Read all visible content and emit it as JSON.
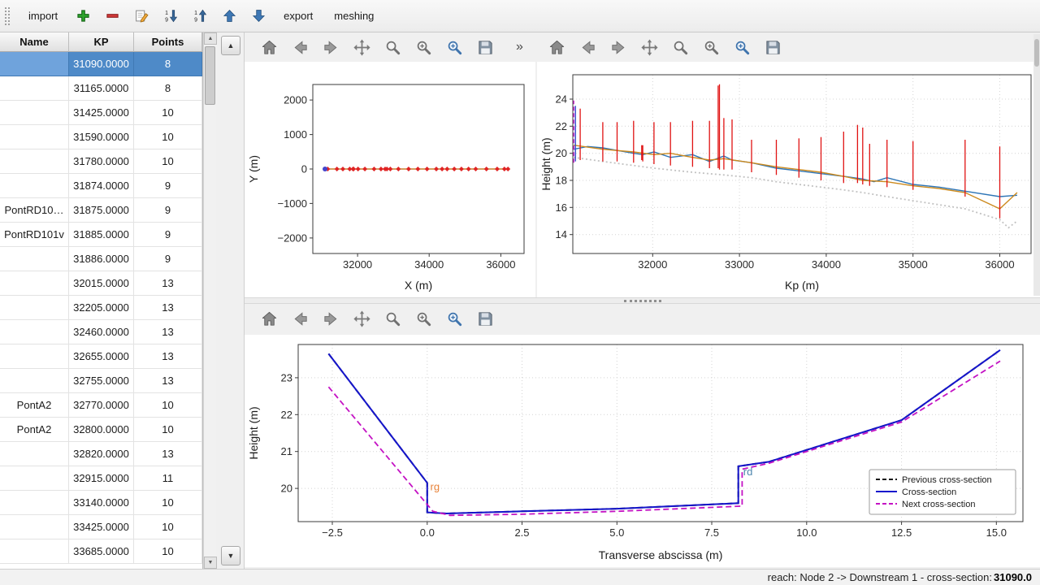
{
  "window": {
    "status": {
      "prefix": "reach: Node 2 -> Downstream 1 - cross-section: ",
      "value": "31090.0"
    }
  },
  "icons": {
    "up_arrow": "▲",
    "down_arrow": "▼"
  },
  "top_toolbar": {
    "import_label": "import",
    "export_label": "export",
    "meshing_label": "meshing",
    "icon_names": [
      "add-icon",
      "remove-icon",
      "edit-icon",
      "sort-descending-icon",
      "sort-ascending-icon",
      "move-up-icon",
      "move-down-icon"
    ]
  },
  "table": {
    "columns": [
      "Name",
      "KP",
      "Points"
    ],
    "selected_index": 0,
    "rows": [
      {
        "name": "",
        "kp": "31090.0000",
        "points": "8"
      },
      {
        "name": "",
        "kp": "31165.0000",
        "points": "8"
      },
      {
        "name": "",
        "kp": "31425.0000",
        "points": "10"
      },
      {
        "name": "",
        "kp": "31590.0000",
        "points": "10"
      },
      {
        "name": "",
        "kp": "31780.0000",
        "points": "10"
      },
      {
        "name": "",
        "kp": "31874.0000",
        "points": "9"
      },
      {
        "name": "PontRD10…",
        "kp": "31875.0000",
        "points": "9"
      },
      {
        "name": "PontRD101v",
        "kp": "31885.0000",
        "points": "9"
      },
      {
        "name": "",
        "kp": "31886.0000",
        "points": "9"
      },
      {
        "name": "",
        "kp": "32015.0000",
        "points": "13"
      },
      {
        "name": "",
        "kp": "32205.0000",
        "points": "13"
      },
      {
        "name": "",
        "kp": "32460.0000",
        "points": "13"
      },
      {
        "name": "",
        "kp": "32655.0000",
        "points": "13"
      },
      {
        "name": "",
        "kp": "32755.0000",
        "points": "13"
      },
      {
        "name": "PontA2",
        "kp": "32770.0000",
        "points": "10"
      },
      {
        "name": "PontA2",
        "kp": "32800.0000",
        "points": "10"
      },
      {
        "name": "",
        "kp": "32820.0000",
        "points": "13"
      },
      {
        "name": "",
        "kp": "32915.0000",
        "points": "11"
      },
      {
        "name": "",
        "kp": "33140.0000",
        "points": "10"
      },
      {
        "name": "",
        "kp": "33425.0000",
        "points": "10"
      },
      {
        "name": "",
        "kp": "33685.0000",
        "points": "10"
      }
    ]
  },
  "plot_toolbar": {
    "icons": [
      "home",
      "back",
      "forward",
      "pan",
      "zoom",
      "subplots",
      "customize",
      "save"
    ],
    "overflow_label": "»"
  },
  "chart_data": [
    {
      "id": "plan-view",
      "type": "scatter",
      "xlabel": "X (m)",
      "ylabel": "Y (m)",
      "xlim": [
        30750,
        36650
      ],
      "ylim": [
        -2450,
        2450
      ],
      "xticks": [
        32000,
        34000,
        36000
      ],
      "yticks": [
        -2000,
        -1000,
        0,
        1000,
        2000
      ],
      "ytick_labels": [
        "−2000",
        "−1000",
        "0",
        "1000",
        "2000"
      ],
      "grid": false,
      "series": [
        {
          "name": "river-axis",
          "color": "#c87d2a",
          "width": 1.4,
          "x": [
            31090,
            36200
          ],
          "y": [
            0,
            0
          ]
        },
        {
          "name": "cross-section-markers",
          "type": "points",
          "marker": "diamond",
          "size": 3,
          "color": "#e02424",
          "x": [
            31165,
            31425,
            31590,
            31780,
            31874,
            31886,
            32015,
            32205,
            32460,
            32655,
            32770,
            32820,
            32915,
            33140,
            33425,
            33685,
            33940,
            34200,
            34360,
            34500,
            34700,
            34900,
            35100,
            35300,
            35600,
            35900,
            36100,
            36200
          ],
          "y": [
            0,
            0,
            0,
            0,
            0,
            0,
            0,
            0,
            0,
            0,
            0,
            0,
            0,
            0,
            0,
            0,
            0,
            0,
            0,
            0,
            0,
            0,
            0,
            0,
            0,
            0,
            0,
            0
          ]
        },
        {
          "name": "selected-section-marker",
          "type": "points",
          "marker": "circle",
          "size": 3,
          "color": "#4444cc",
          "x": [
            31090
          ],
          "y": [
            0
          ]
        }
      ]
    },
    {
      "id": "longitudinal-profile",
      "type": "line",
      "xlabel": "Kp (m)",
      "ylabel": "Height (m)",
      "xlim": [
        31080,
        36360
      ],
      "ylim": [
        12.6,
        25.8
      ],
      "xticks": [
        32000,
        33000,
        34000,
        35000,
        36000
      ],
      "yticks": [
        14,
        16,
        18,
        20,
        22,
        24
      ],
      "grid": true,
      "vlines": {
        "color": "#e01212",
        "width": 1.3,
        "segments": [
          [
            31165,
            19.5,
            23.3
          ],
          [
            31425,
            19.4,
            22.3
          ],
          [
            31590,
            19.4,
            22.3
          ],
          [
            31780,
            19.3,
            22.4
          ],
          [
            31874,
            19.5,
            20.6
          ],
          [
            31886,
            19.4,
            20.6
          ],
          [
            32015,
            19.2,
            22.3
          ],
          [
            32205,
            19.1,
            22.3
          ],
          [
            32460,
            19.0,
            22.4
          ],
          [
            32655,
            18.9,
            22.4
          ],
          [
            32755,
            18.9,
            25.0
          ],
          [
            32770,
            18.8,
            25.1
          ],
          [
            32820,
            18.8,
            22.6
          ],
          [
            32915,
            18.8,
            22.5
          ],
          [
            33140,
            18.6,
            21.0
          ],
          [
            33425,
            18.4,
            21.0
          ],
          [
            33685,
            18.2,
            21.1
          ],
          [
            33940,
            18.0,
            21.2
          ],
          [
            34200,
            17.8,
            21.6
          ],
          [
            34360,
            17.8,
            22.1
          ],
          [
            34420,
            17.7,
            21.9
          ],
          [
            34500,
            17.6,
            20.7
          ],
          [
            34700,
            17.5,
            21.0
          ],
          [
            35000,
            17.3,
            20.9
          ],
          [
            35600,
            16.8,
            21.0
          ],
          [
            36000,
            15.2,
            20.5
          ]
        ]
      },
      "series": [
        {
          "name": "river-bottom",
          "color": "#c2c2c2",
          "dash": "2,3",
          "width": 1.8,
          "x": [
            31090,
            31425,
            31780,
            32015,
            32460,
            32820,
            33140,
            33425,
            33685,
            33940,
            34200,
            34420,
            34700,
            35000,
            35300,
            35600,
            36000,
            36100,
            36200
          ],
          "y": [
            19.7,
            19.4,
            19.1,
            18.9,
            18.6,
            18.4,
            18.2,
            17.9,
            17.7,
            17.5,
            17.3,
            17.1,
            16.8,
            16.5,
            16.2,
            15.9,
            15.1,
            14.5,
            15.0
          ]
        },
        {
          "name": "left-bank",
          "color": "#2e75b6",
          "width": 1.4,
          "x": [
            31090,
            31250,
            31425,
            31600,
            31780,
            31890,
            32015,
            32205,
            32460,
            32655,
            32820,
            32915,
            33140,
            33425,
            33685,
            33940,
            34200,
            34420,
            34550,
            34700,
            35000,
            35300,
            35600,
            36000,
            36200
          ],
          "y": [
            20.3,
            20.5,
            20.4,
            20.2,
            20.0,
            19.9,
            20.1,
            19.7,
            19.9,
            19.4,
            19.8,
            19.5,
            19.3,
            18.9,
            18.7,
            18.5,
            18.3,
            18.1,
            17.9,
            18.2,
            17.7,
            17.5,
            17.2,
            16.8,
            16.9
          ]
        },
        {
          "name": "right-bank",
          "color": "#cc8a1e",
          "width": 1.4,
          "x": [
            31090,
            31425,
            31780,
            32015,
            32205,
            32460,
            32655,
            32820,
            33140,
            33425,
            33685,
            33940,
            34200,
            34420,
            34700,
            35000,
            35300,
            35600,
            36000,
            36200
          ],
          "y": [
            20.6,
            20.3,
            20.1,
            19.9,
            20.0,
            19.7,
            19.5,
            19.6,
            19.3,
            19.0,
            18.8,
            18.6,
            18.3,
            18.0,
            17.9,
            17.6,
            17.4,
            17.1,
            15.9,
            17.1
          ]
        },
        {
          "name": "selected-section-line",
          "color": "#3344cc",
          "width": 1.4,
          "x": [
            31110,
            31110
          ],
          "y": [
            19.4,
            23.5
          ]
        },
        {
          "name": "selected-section-marker",
          "color": "#cc22cc",
          "dash": "5,3",
          "width": 1.5,
          "x": [
            31090,
            31090
          ],
          "y": [
            19.3,
            23.9
          ]
        }
      ]
    },
    {
      "id": "cross-section",
      "type": "line",
      "xlabel": "Transverse abscissa (m)",
      "ylabel": "Height (m)",
      "xlim": [
        -3.4,
        15.7
      ],
      "ylim": [
        19.1,
        23.9
      ],
      "xticks": [
        -2.5,
        0.0,
        2.5,
        5.0,
        7.5,
        10.0,
        12.5,
        15.0
      ],
      "xtick_labels": [
        "−2.5",
        "0.0",
        "2.5",
        "5.0",
        "7.5",
        "10.0",
        "12.5",
        "15.0"
      ],
      "yticks": [
        20,
        21,
        22,
        23
      ],
      "grid": true,
      "series": [
        {
          "name": "Previous cross-section",
          "color": "#1a1a1a",
          "dash": "7,4",
          "width": 2,
          "x": [
            -2.6,
            0.0,
            0.0,
            0.5,
            2.5,
            5.0,
            8.2,
            8.2,
            9.0,
            12.5,
            15.1
          ],
          "y": [
            23.65,
            20.15,
            19.35,
            19.32,
            19.38,
            19.45,
            19.6,
            20.6,
            20.72,
            21.85,
            23.75
          ]
        },
        {
          "name": "Cross-section",
          "color": "#1515cc",
          "width": 2,
          "x": [
            -2.6,
            0.0,
            0.0,
            0.5,
            2.5,
            5.0,
            8.2,
            8.2,
            9.0,
            12.5,
            15.1
          ],
          "y": [
            23.65,
            20.15,
            19.35,
            19.32,
            19.38,
            19.45,
            19.6,
            20.6,
            20.72,
            21.85,
            23.75
          ]
        },
        {
          "name": "Next cross-section",
          "color": "#c413c4",
          "dash": "7,4",
          "width": 1.8,
          "x": [
            -2.6,
            0.15,
            0.6,
            2.5,
            5.0,
            8.3,
            8.3,
            9.0,
            12.5,
            15.1
          ],
          "y": [
            22.75,
            19.38,
            19.27,
            19.3,
            19.38,
            19.52,
            20.52,
            20.68,
            21.8,
            23.45
          ]
        }
      ],
      "annotations": [
        {
          "text": "rg",
          "x": 0.08,
          "y": 19.95,
          "color": "#e8833a"
        },
        {
          "text": "rd",
          "x": 8.33,
          "y": 20.35,
          "color": "#4d86ad"
        }
      ],
      "legend": {
        "position": "bottom-right",
        "entries": [
          "Previous cross-section",
          "Cross-section",
          "Next cross-section"
        ]
      }
    }
  ]
}
